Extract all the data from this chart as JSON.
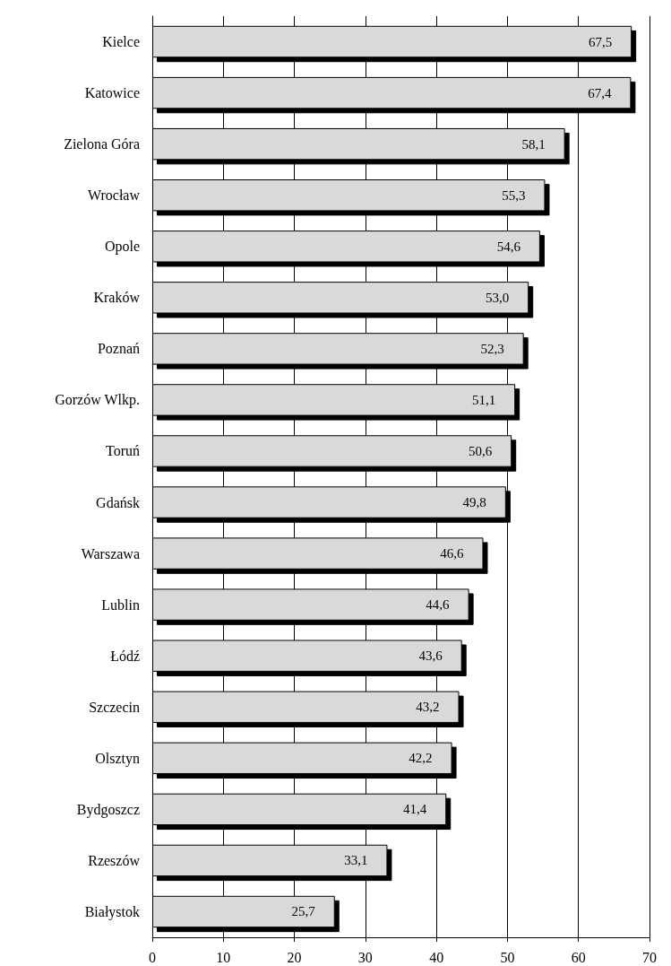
{
  "chart_data": {
    "type": "bar",
    "orientation": "horizontal",
    "categories": [
      "Kielce",
      "Katowice",
      "Zielona Góra",
      "Wrocław",
      "Opole",
      "Kraków",
      "Poznań",
      "Gorzów Wlkp.",
      "Toruń",
      "Gdańsk",
      "Warszawa",
      "Lublin",
      "Łódź",
      "Szczecin",
      "Olsztyn",
      "Bydgoszcz",
      "Rzeszów",
      "Białystok"
    ],
    "values": [
      67.5,
      67.4,
      58.1,
      55.3,
      54.6,
      53.0,
      52.3,
      51.1,
      50.6,
      49.8,
      46.6,
      44.6,
      43.6,
      43.2,
      42.2,
      41.4,
      33.1,
      25.7
    ],
    "value_labels": [
      "67,5",
      "67,4",
      "58,1",
      "55,3",
      "54,6",
      "53,0",
      "52,3",
      "51,1",
      "50,6",
      "49,8",
      "46,6",
      "44,6",
      "43,6",
      "43,2",
      "42,2",
      "41,4",
      "33,1",
      "25,7"
    ],
    "color": "#d9d9d9",
    "xlim": [
      0,
      70
    ],
    "xticks": [
      0,
      10,
      20,
      30,
      40,
      50,
      60,
      70
    ],
    "grid": "x"
  }
}
